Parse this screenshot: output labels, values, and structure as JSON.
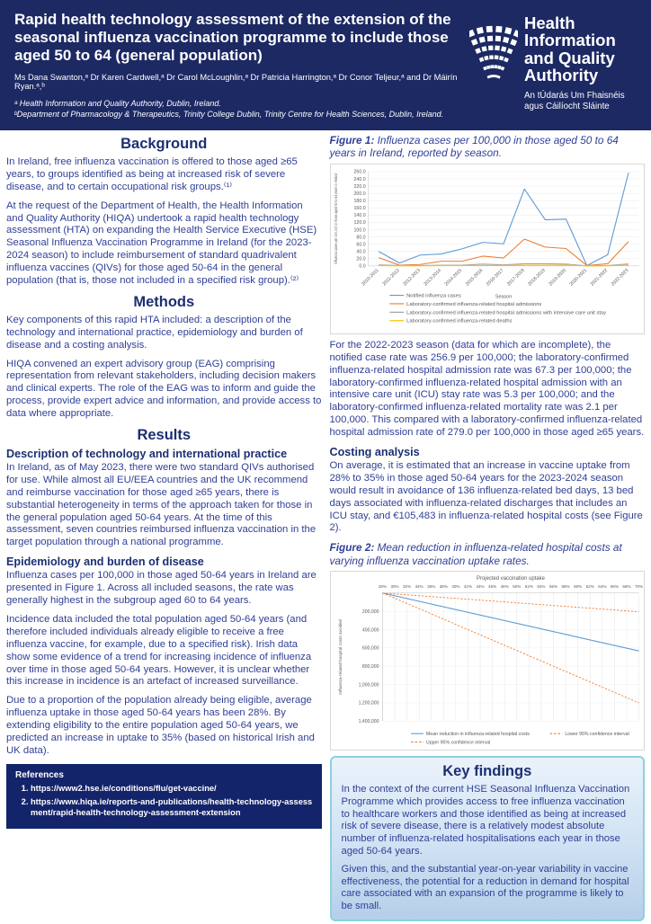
{
  "header": {
    "title": "Rapid health technology assessment of the extension of the seasonal influenza vaccination programme to include those aged 50 to 64 (general population)",
    "authors": "Ms Dana Swanton,ᵃ Dr Karen Cardwell,ᵃ Dr Carol McLoughlin,ᵃ Dr Patricia Harrington,ᵃ Dr Conor Teljeur,ᵃ and Dr Máirín Ryan.ᵃ,ᵇ",
    "affiliation_a": "ᵃ Health Information and Quality Authority, Dublin, Ireland.",
    "affiliation_b": "ᵇDepartment of Pharmacology & Therapeutics, Trinity College Dublin, Trinity Centre for Health Sciences, Dublin, Ireland.",
    "logo": {
      "name": [
        "Health",
        "Information",
        "and Quality",
        "Authority"
      ],
      "irish": "An tÚdarás Um Fhaisnéis agus Cáilíocht Sláinte"
    }
  },
  "left": {
    "background": {
      "heading": "Background",
      "p1": "In Ireland, free influenza vaccination is offered to those aged ≥65 years, to groups identified as being at increased risk of severe disease, and to certain occupational risk groups.⁽¹⁾",
      "p2": "At the request of the Department of Health, the Health Information and Quality Authority (HIQA) undertook a rapid health technology assessment (HTA) on expanding the Health Service Executive (HSE) Seasonal Influenza Vaccination Programme in Ireland (for the 2023-2024 season) to include reimbursement of standard quadrivalent influenza vaccines (QIVs) for those aged 50-64 in the general population (that is, those not included in a specified risk group).⁽²⁾"
    },
    "methods": {
      "heading": "Methods",
      "p1": "Key components of this rapid HTA included: a description of the technology and international practice, epidemiology and burden of disease and a costing analysis.",
      "p2": "HIQA convened an expert advisory group (EAG) comprising representation from relevant stakeholders, including decision makers and clinical experts. The role of the EAG was to inform and guide the process, provide expert advice and information, and provide access to data where appropriate."
    },
    "results": {
      "heading": "Results",
      "tech_heading": "Description of technology and international practice",
      "tech_p": "In Ireland, as of May 2023, there were two standard QIVs authorised for use. While almost all EU/EEA countries and the UK recommend and reimburse vaccination for those aged ≥65 years, there is substantial heterogeneity in terms of the approach taken for those in the general population aged 50-64 years. At the time of this assessment, seven countries reimbursed influenza vaccination in the target population through a national programme.",
      "epi_heading": "Epidemiology and burden of disease",
      "epi_p1": "Influenza cases per 100,000 in those aged 50-64 years in Ireland are presented in Figure 1. Across all included seasons, the rate was generally highest in the subgroup aged 60 to 64 years.",
      "epi_p2": "Incidence data included the total population aged 50-64 years (and therefore included individuals already eligible to receive a free influenza vaccine, for example, due to a specified risk). Irish data show some evidence of a trend for increasing incidence of influenza over time in those aged 50-64 years. However, it is unclear whether this increase in incidence is an artefact of increased surveillance.",
      "epi_p3": "Due to a proportion of the population already being eligible, average influenza uptake in those aged 50-64 years has been 28%. By extending eligibility to the entire population aged 50-64 years, we predicted an increase in uptake to 35% (based on historical Irish and UK data)."
    },
    "references": {
      "heading": "References",
      "items": [
        "https://www2.hse.ie/conditions/flu/get-vaccine/",
        "https://www.hiqa.ie/reports-and-publications/health-technology-assessment/rapid-health-technology-assessment-extension"
      ]
    }
  },
  "right": {
    "figure1": {
      "label": "Figure 1:",
      "caption": " Influenza cases per 100,000 in those aged 50 to 64 years in Ireland, reported by season."
    },
    "figure1_text": "For the 2022-2023 season (data for which are incomplete), the notified case rate was 256.9 per 100,000; the laboratory-confirmed influenza-related hospital admission rate was 67.3 per 100,000; the laboratory-confirmed influenza-related hospital admission with an intensive care unit (ICU) stay rate was 5.3 per 100,000; and the laboratory-confirmed influenza-related mortality rate was 2.1 per 100,000. This compared with a laboratory-confirmed influenza-related hospital admission rate of 279.0 per 100,000 in those aged ≥65 years.",
    "costing": {
      "heading": "Costing analysis",
      "p": "On average, it is estimated that an increase in vaccine uptake from 28% to 35% in those aged 50-64 years for the 2023-2024 season would result in avoidance of 136 influenza-related bed days, 13 bed days associated with influenza-related discharges that includes an ICU stay, and €105,483 in influenza-related hospital costs (see Figure 2)."
    },
    "figure2": {
      "label": "Figure 2:",
      "caption": " Mean reduction in influenza-related hospital costs at varying influenza vaccination uptake rates."
    },
    "key_findings": {
      "heading": "Key findings",
      "p1": "In the context of the current HSE Seasonal Influenza Vaccination Programme which provides access to free influenza vaccination to healthcare workers and those identified as being at increased risk of severe disease, there is a relatively modest absolute number of influenza-related hospitalisations each year in those aged 50-64 years.",
      "p2": "Given this, and the substantial year-on-year variability in vaccine effectiveness, the potential for a reduction in demand for hospital care associated with an expansion of the programme is likely to be small."
    }
  },
  "chart_data": [
    {
      "type": "line",
      "title": "",
      "xlabel": "Season",
      "ylabel": "Influenza cases per 100,000 in those aged 50 to 64 years in Ireland",
      "ylim": [
        0,
        260
      ],
      "ytick_step": 20,
      "grid": "horizontal",
      "legend_position": "bottom",
      "categories": [
        "2010-2011",
        "2011-2012",
        "2012-2013",
        "2013-2014",
        "2014-2015",
        "2015-2016",
        "2016-2017",
        "2017-2018",
        "2018-2019",
        "2019-2020",
        "2020-2021",
        "2021-2022",
        "2022-2023"
      ],
      "series": [
        {
          "name": "Notified influenza cases",
          "color": "#5b9bd5",
          "values": [
            40,
            8,
            30,
            33,
            47,
            65,
            61,
            212,
            127,
            129,
            1,
            31,
            256.9
          ]
        },
        {
          "name": "Laboratory-confirmed influenza-related hospital admissions",
          "color": "#ed7d31",
          "values": [
            23,
            2,
            4,
            13,
            13,
            27,
            22,
            74,
            52,
            48,
            1,
            6,
            67.3
          ]
        },
        {
          "name": "Laboratory-confirmed influenza-related hospital admissions with intensive care unit stay",
          "color": "#a5a5a5",
          "values": [
            3,
            1,
            1,
            2,
            2,
            5,
            3,
            6,
            6,
            5,
            0.3,
            1,
            5.3
          ]
        },
        {
          "name": "Laboratory-confirmed influenza-related deaths",
          "color": "#ffc000",
          "values": [
            1,
            0.5,
            0.5,
            1,
            1,
            1,
            1,
            2,
            2,
            2,
            0.2,
            0.5,
            2.1
          ]
        }
      ]
    },
    {
      "type": "line",
      "title": "Projected vaccination uptake",
      "xlabel": "",
      "ylabel": "Influenza-related hospital costs avoided",
      "ylim": [
        0,
        1400000
      ],
      "ytick_step": 200000,
      "y_axis_inverted": true,
      "grid": "vertical",
      "legend_position": "bottom",
      "x_ticks": [
        "28%",
        "30%",
        "32%",
        "34%",
        "36%",
        "38%",
        "40%",
        "42%",
        "44%",
        "46%",
        "48%",
        "50%",
        "52%",
        "54%",
        "56%",
        "58%",
        "60%",
        "62%",
        "64%",
        "66%",
        "68%",
        "70%"
      ],
      "series": [
        {
          "name": "Mean reduction in influenza-related hospital costs",
          "color": "#5b9bd5",
          "style": "solid",
          "start": 0,
          "end": 633000
        },
        {
          "name": "Lower 95% confidence interval",
          "color": "#ed7d31",
          "style": "dashed",
          "start": 0,
          "end": 205000
        },
        {
          "name": "Upper 95% confidence interval",
          "color": "#ed7d31",
          "style": "dashed",
          "start": 0,
          "end": 1200000
        }
      ]
    }
  ]
}
